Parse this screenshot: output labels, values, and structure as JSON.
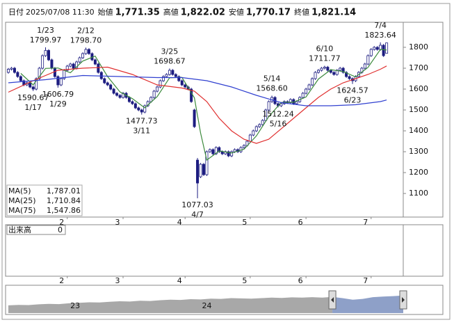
{
  "header": [
    {
      "label": "日付",
      "value": "2025/07/08 11:30",
      "color": "#111111"
    },
    {
      "label": "始値",
      "value": "1,771.35",
      "color": "#111111"
    },
    {
      "label": "高値",
      "value": "1,822.02",
      "color": "#e0101a"
    },
    {
      "label": "安値",
      "value": "1,770.17",
      "color": "#1a9a1a"
    },
    {
      "label": "終値",
      "value": "1,821.14",
      "color": "#111111"
    }
  ],
  "chart_data": {
    "type": "candlestick",
    "xlim": [
      -0.9,
      124
    ],
    "ylim": [
      987,
      1920
    ],
    "yticks": [
      1100,
      1200,
      1300,
      1400,
      1500,
      1600,
      1700,
      1800
    ],
    "xticks": [
      {
        "value": 19,
        "label": "2"
      },
      {
        "value": 37,
        "label": "3"
      },
      {
        "value": 57,
        "label": "4"
      },
      {
        "value": 78,
        "label": "5"
      },
      {
        "value": 96,
        "label": "6"
      },
      {
        "value": 117,
        "label": "7"
      }
    ],
    "up_color": "#ffffff",
    "down_color": "#1c1c80",
    "edge_color": "#1c1c80",
    "ohlc": {
      "open": [
        1680,
        1695,
        1700,
        1680,
        1660,
        1640,
        1620,
        1630,
        1610,
        1600,
        1650,
        1700,
        1760,
        1785,
        1740,
        1700,
        1660,
        1620,
        1650,
        1690,
        1710,
        1720,
        1700,
        1730,
        1750,
        1770,
        1790,
        1770,
        1740,
        1720,
        1680,
        1650,
        1630,
        1620,
        1600,
        1580,
        1570,
        1560,
        1580,
        1560,
        1540,
        1530,
        1510,
        1500,
        1490,
        1520,
        1540,
        1560,
        1590,
        1610,
        1640,
        1660,
        1670,
        1690,
        1670,
        1660,
        1640,
        1620,
        1610,
        1600,
        1500,
        1260,
        1180,
        1240,
        1190,
        1300,
        1310,
        1290,
        1320,
        1300,
        1290,
        1300,
        1280,
        1300,
        1310,
        1300,
        1320,
        1330,
        1350,
        1380,
        1400,
        1420,
        1430,
        1450,
        1500,
        1540,
        1560,
        1530,
        1520,
        1530,
        1540,
        1535,
        1550,
        1530,
        1540,
        1560,
        1580,
        1600,
        1620,
        1650,
        1680,
        1690,
        1700,
        1705,
        1690,
        1680,
        1670,
        1690,
        1700,
        1680,
        1660,
        1650,
        1640,
        1660,
        1680,
        1700,
        1720,
        1760,
        1790,
        1800,
        1790,
        1810,
        1771.35
      ],
      "high": [
        1701,
        1706,
        1706,
        1686,
        1666,
        1646,
        1636,
        1636,
        1616,
        1656,
        1706,
        1766,
        1799.97,
        1791,
        1746,
        1706,
        1666,
        1656,
        1696,
        1716,
        1726,
        1726,
        1736,
        1756,
        1776,
        1798.7,
        1796,
        1776,
        1746,
        1726,
        1686,
        1656,
        1636,
        1626,
        1606,
        1586,
        1576,
        1586,
        1586,
        1566,
        1546,
        1536,
        1516,
        1506,
        1526,
        1546,
        1566,
        1596,
        1616,
        1646,
        1666,
        1676,
        1698.67,
        1696,
        1676,
        1666,
        1646,
        1626,
        1616,
        1606,
        1506,
        1270,
        1246,
        1246,
        1306,
        1316,
        1316,
        1326,
        1326,
        1306,
        1306,
        1306,
        1306,
        1316,
        1316,
        1326,
        1336,
        1356,
        1386,
        1406,
        1426,
        1436,
        1456,
        1506,
        1546,
        1568.6,
        1566,
        1536,
        1536,
        1546,
        1546,
        1556,
        1556,
        1546,
        1566,
        1586,
        1606,
        1626,
        1656,
        1686,
        1696,
        1706,
        1711.77,
        1711,
        1696,
        1686,
        1696,
        1706,
        1706,
        1686,
        1666,
        1656,
        1666,
        1686,
        1706,
        1726,
        1766,
        1796,
        1806,
        1806,
        1823.64,
        1816,
        1822.02
      ],
      "low": [
        1674,
        1689,
        1674,
        1654,
        1634,
        1614,
        1614,
        1604,
        1590.67,
        1594,
        1644,
        1694,
        1754,
        1734,
        1694,
        1654,
        1606.79,
        1614,
        1644,
        1684,
        1704,
        1694,
        1694,
        1724,
        1744,
        1764,
        1764,
        1734,
        1714,
        1674,
        1644,
        1624,
        1614,
        1594,
        1574,
        1564,
        1554,
        1554,
        1554,
        1534,
        1524,
        1504,
        1494,
        1477.73,
        1484,
        1514,
        1534,
        1554,
        1584,
        1604,
        1634,
        1654,
        1664,
        1664,
        1654,
        1634,
        1614,
        1604,
        1594,
        1534,
        1414,
        1077.03,
        1174,
        1184,
        1184,
        1294,
        1284,
        1284,
        1294,
        1284,
        1284,
        1274,
        1274,
        1294,
        1294,
        1294,
        1314,
        1324,
        1344,
        1374,
        1394,
        1414,
        1424,
        1444,
        1494,
        1534,
        1524,
        1512.24,
        1514,
        1524,
        1529,
        1529,
        1524,
        1524,
        1534,
        1554,
        1574,
        1594,
        1614,
        1644,
        1674,
        1684,
        1694,
        1684,
        1674,
        1664,
        1664,
        1684,
        1674,
        1654,
        1644,
        1624.57,
        1634,
        1654,
        1674,
        1694,
        1714,
        1754,
        1784,
        1784,
        1784,
        1754,
        1770.17
      ],
      "close": [
        1695,
        1700,
        1680,
        1660,
        1640,
        1620,
        1630,
        1610,
        1600,
        1650,
        1700,
        1760,
        1785,
        1740,
        1700,
        1660,
        1620,
        1650,
        1690,
        1710,
        1720,
        1700,
        1730,
        1750,
        1770,
        1790,
        1770,
        1740,
        1720,
        1680,
        1650,
        1630,
        1620,
        1600,
        1580,
        1570,
        1560,
        1580,
        1560,
        1540,
        1530,
        1510,
        1500,
        1490,
        1520,
        1540,
        1560,
        1590,
        1610,
        1640,
        1660,
        1670,
        1690,
        1670,
        1660,
        1640,
        1620,
        1610,
        1600,
        1540,
        1420,
        1150,
        1240,
        1190,
        1300,
        1310,
        1290,
        1320,
        1300,
        1290,
        1300,
        1280,
        1300,
        1310,
        1300,
        1320,
        1330,
        1350,
        1380,
        1400,
        1420,
        1430,
        1450,
        1500,
        1540,
        1560,
        1530,
        1520,
        1530,
        1540,
        1535,
        1550,
        1530,
        1540,
        1560,
        1580,
        1600,
        1620,
        1650,
        1680,
        1690,
        1700,
        1705,
        1690,
        1680,
        1670,
        1690,
        1700,
        1680,
        1660,
        1650,
        1640,
        1660,
        1680,
        1700,
        1720,
        1760,
        1790,
        1800,
        1790,
        1810,
        1760,
        1821.14
      ]
    },
    "series": [
      {
        "name": "MA(5)",
        "latest": "1,787.01",
        "color": "#3c8a3c",
        "x": [
          4,
          8,
          12,
          16,
          20,
          24,
          28,
          32,
          36,
          40,
          44,
          48,
          52,
          56,
          60,
          62,
          64,
          68,
          72,
          76,
          80,
          84,
          88,
          92,
          96,
          100,
          104,
          108,
          112,
          116,
          120,
          122
        ],
        "values": [
          1675,
          1620,
          1699,
          1701,
          1678,
          1734,
          1758,
          1660,
          1586,
          1554,
          1510,
          1564,
          1654,
          1656,
          1558,
          1390,
          1260,
          1304,
          1294,
          1312,
          1376,
          1468,
          1536,
          1537,
          1562,
          1648,
          1693,
          1684,
          1658,
          1704,
          1790,
          1787.01
        ]
      },
      {
        "name": "MA(25)",
        "latest": "1,710.84",
        "color": "#e03030",
        "x": [
          0,
          8,
          16,
          24,
          32,
          40,
          48,
          56,
          60,
          64,
          68,
          72,
          76,
          80,
          84,
          88,
          92,
          96,
          100,
          104,
          108,
          112,
          116,
          120,
          122
        ],
        "values": [
          1585,
          1640,
          1690,
          1700,
          1705,
          1670,
          1620,
          1605,
          1590,
          1540,
          1460,
          1400,
          1360,
          1340,
          1360,
          1410,
          1460,
          1510,
          1560,
          1600,
          1630,
          1650,
          1670,
          1695,
          1710.84
        ]
      },
      {
        "name": "MA(75)",
        "latest": "1,547.86",
        "color": "#3040d0",
        "x": [
          0,
          12,
          24,
          36,
          48,
          56,
          64,
          72,
          80,
          88,
          96,
          104,
          112,
          120,
          122
        ],
        "values": [
          1630,
          1645,
          1665,
          1660,
          1655,
          1655,
          1640,
          1610,
          1570,
          1535,
          1520,
          1520,
          1525,
          1540,
          1547.86
        ]
      }
    ],
    "annotations": [
      {
        "at": 8,
        "value": 1590.67,
        "date": "1/17",
        "position": "below"
      },
      {
        "at": 12,
        "value": 1799.97,
        "date": "1/23",
        "position": "above"
      },
      {
        "at": 16,
        "value": 1606.79,
        "date": "1/29",
        "position": "below"
      },
      {
        "at": 25,
        "value": 1798.7,
        "label": "1798.70",
        "date": "2/12",
        "position": "above"
      },
      {
        "at": 43,
        "value": 1477.73,
        "date": "3/11",
        "position": "below"
      },
      {
        "at": 52,
        "value": 1698.67,
        "date": "3/25",
        "position": "above"
      },
      {
        "at": 61,
        "value": 1077.03,
        "date": "4/7",
        "position": "below"
      },
      {
        "at": 85,
        "value": 1568.6,
        "label": "1568.60",
        "date": "5/14",
        "position": "above"
      },
      {
        "at": 87,
        "value": 1512.24,
        "date": "5/16",
        "position": "below"
      },
      {
        "at": 102,
        "value": 1711.77,
        "date": "6/10",
        "position": "above"
      },
      {
        "at": 111,
        "value": 1624.57,
        "date": "6/23",
        "position": "below"
      },
      {
        "at": 120,
        "value": 1823.64,
        "date": "7/4",
        "position": "above"
      }
    ],
    "volume": {
      "label": "出来高",
      "value": 0
    },
    "navigator": {
      "ylim": [
        0,
        100
      ],
      "values": [
        30,
        32,
        31,
        34,
        36,
        35,
        38,
        40,
        42,
        41,
        44,
        46,
        45,
        48,
        47,
        50,
        52,
        51,
        54,
        53,
        56,
        55,
        58,
        57,
        56,
        58,
        60,
        59,
        61,
        60,
        62,
        60,
        63,
        58,
        52,
        55,
        62,
        64,
        66,
        68
      ],
      "selected": [
        32,
        39
      ],
      "xticks": [
        {
          "value": 6.6,
          "label": "23"
        },
        {
          "value": 19.6,
          "label": "24"
        }
      ],
      "color": "#a8a8a8",
      "selected_color": "#8ea0c8"
    }
  }
}
